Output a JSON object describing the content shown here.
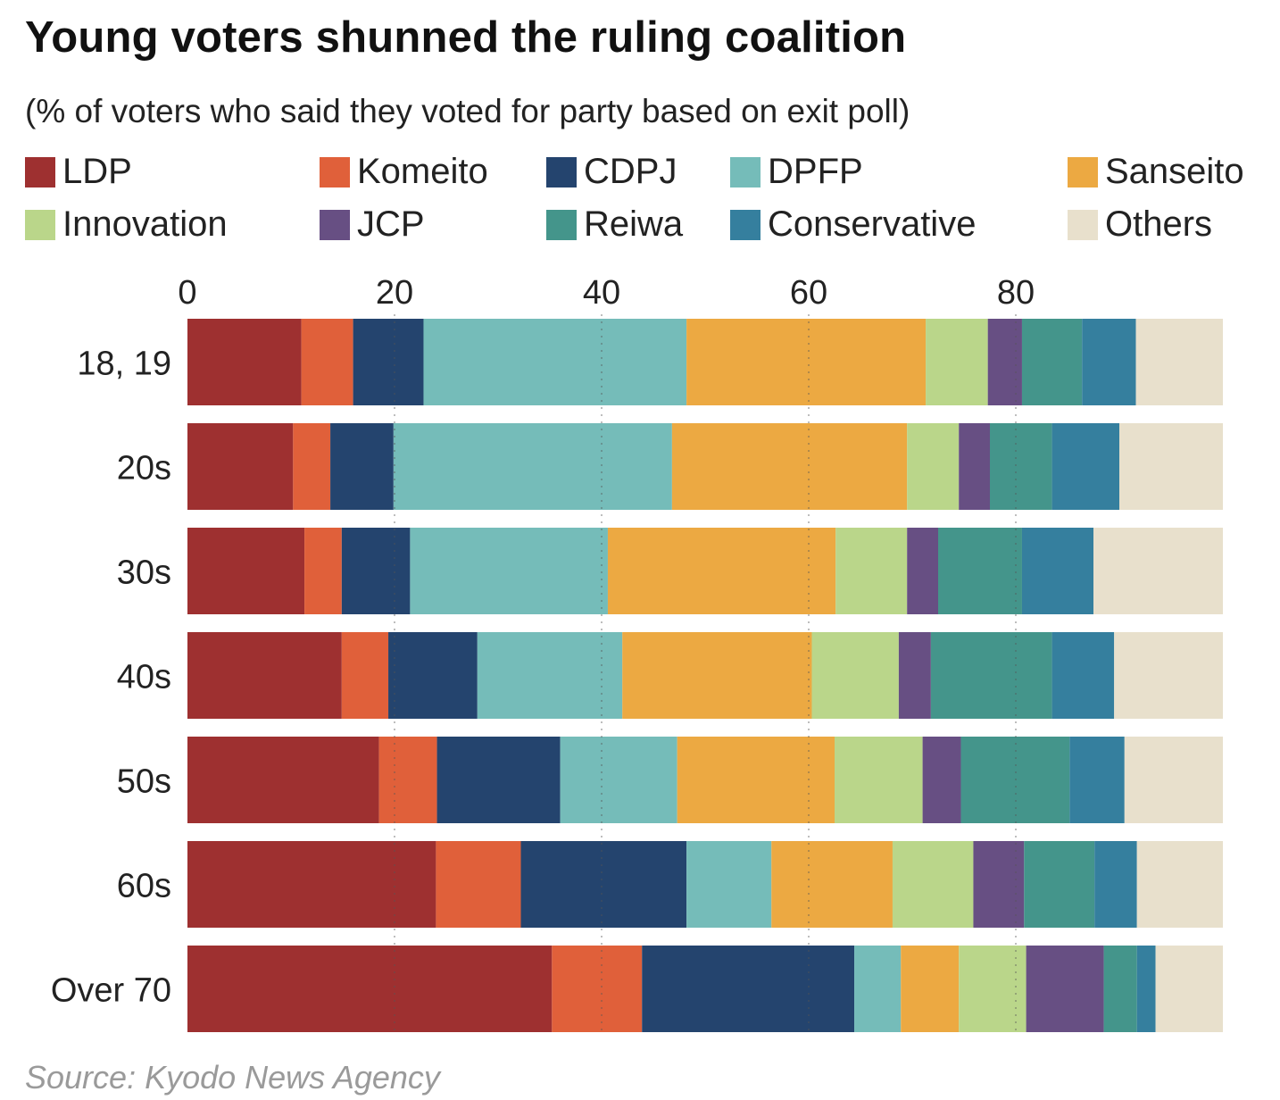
{
  "title": "Young voters shunned the ruling coalition",
  "subtitle": "(% of voters who said they voted for party based on exit poll)",
  "source": "Source: Kyodo News Agency",
  "chart_data": {
    "type": "bar",
    "orientation": "horizontal",
    "stacked": true,
    "title": "Young voters shunned the ruling coalition",
    "subtitle": "(% of voters who said they voted for party based on exit poll)",
    "categories": [
      "18, 19",
      "20s",
      "30s",
      "40s",
      "50s",
      "60s",
      "Over 70"
    ],
    "xlim": [
      0,
      100
    ],
    "xticks": [
      0,
      20,
      40,
      60,
      80
    ],
    "grid": "dotted vertical",
    "legend_position": "top",
    "series": [
      {
        "name": "LDP",
        "color": "#9e3030",
        "values": [
          11.0,
          10.2,
          11.3,
          14.9,
          18.5,
          24.0,
          35.2
        ]
      },
      {
        "name": "Komeito",
        "color": "#e0603a",
        "values": [
          5.0,
          3.6,
          3.6,
          4.5,
          5.6,
          8.2,
          8.7
        ]
      },
      {
        "name": "CDPJ",
        "color": "#24446e",
        "values": [
          6.8,
          6.1,
          6.6,
          8.6,
          11.9,
          16.0,
          20.5
        ]
      },
      {
        "name": "DPFP",
        "color": "#75bcb9",
        "values": [
          25.4,
          26.9,
          19.1,
          14.0,
          11.3,
          8.2,
          4.5
        ]
      },
      {
        "name": "Sanseito",
        "color": "#eca942",
        "values": [
          23.1,
          22.7,
          22.0,
          18.3,
          15.2,
          11.7,
          5.6
        ]
      },
      {
        "name": "Innovation",
        "color": "#bad68a",
        "values": [
          6.0,
          5.0,
          6.9,
          8.4,
          8.5,
          7.8,
          6.5
        ]
      },
      {
        "name": "JCP",
        "color": "#674f83",
        "values": [
          3.3,
          3.0,
          3.0,
          3.1,
          3.7,
          4.9,
          7.5
        ]
      },
      {
        "name": "Reiwa",
        "color": "#44958b",
        "values": [
          5.8,
          6.0,
          8.1,
          11.7,
          10.5,
          6.8,
          3.2
        ]
      },
      {
        "name": "Conservative",
        "color": "#357f9e",
        "values": [
          5.2,
          6.5,
          6.9,
          6.0,
          5.3,
          4.1,
          1.8
        ]
      },
      {
        "name": "Others",
        "color": "#e8e0cc",
        "values": [
          8.4,
          10.0,
          12.5,
          10.5,
          9.5,
          8.3,
          6.5
        ]
      }
    ]
  }
}
